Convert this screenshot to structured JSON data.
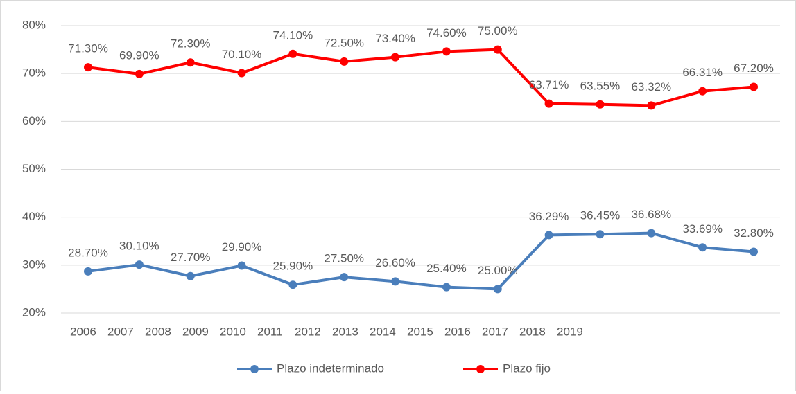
{
  "chart_data": {
    "type": "line",
    "categories": [
      "2006",
      "2007",
      "2008",
      "2009",
      "2010",
      "2011",
      "2012",
      "2013",
      "2014",
      "2015",
      "2016",
      "2017",
      "2018",
      "2019"
    ],
    "series": [
      {
        "name": "Plazo indeterminado",
        "color": "#4a7ebb",
        "values": [
          28.7,
          30.1,
          27.7,
          29.9,
          25.9,
          27.5,
          26.6,
          25.4,
          25.0,
          36.29,
          36.45,
          36.68,
          33.69,
          32.8
        ],
        "value_labels": [
          "28.70%",
          "30.10%",
          "27.70%",
          "29.90%",
          "25.90%",
          "27.50%",
          "26.60%",
          "25.40%",
          "25.00%",
          "36.29%",
          "36.45%",
          "36.68%",
          "33.69%",
          "32.80%"
        ]
      },
      {
        "name": "Plazo fijo",
        "color": "#ff0000",
        "values": [
          71.3,
          69.9,
          72.3,
          70.1,
          74.1,
          72.5,
          73.4,
          74.6,
          75.0,
          63.71,
          63.55,
          63.32,
          66.31,
          67.2
        ],
        "value_labels": [
          "71.30%",
          "69.90%",
          "72.30%",
          "70.10%",
          "74.10%",
          "72.50%",
          "73.40%",
          "74.60%",
          "75.00%",
          "63.71%",
          "63.55%",
          "63.32%",
          "66.31%",
          "67.20%"
        ]
      }
    ],
    "ylim": [
      20,
      80
    ],
    "yticks": [
      {
        "value": 20,
        "label": "20%"
      },
      {
        "value": 30,
        "label": "30%"
      },
      {
        "value": 40,
        "label": "40%"
      },
      {
        "value": 50,
        "label": "50%"
      },
      {
        "value": 60,
        "label": "60%"
      },
      {
        "value": 70,
        "label": "70%"
      },
      {
        "value": 80,
        "label": "80%"
      }
    ],
    "grid": true,
    "legend": "bottom"
  }
}
